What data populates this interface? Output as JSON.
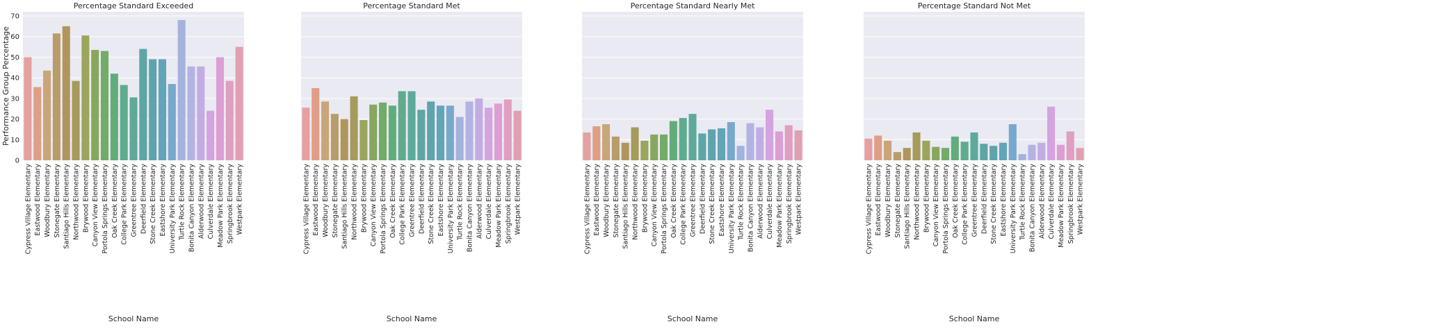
{
  "figure": {
    "ylabel": "Performance Group Percentage",
    "xlabel": "School Name",
    "background": "#eaeaf2",
    "grid_color": "#ffffff",
    "text_color": "#262626"
  },
  "chart_data": {
    "type": "bar",
    "sharey": true,
    "ylim": [
      0,
      72
    ],
    "yticks": [
      0,
      10,
      20,
      30,
      40,
      50,
      60,
      70
    ],
    "grid": true,
    "categories": [
      "Cypress Village Elementary",
      "Eastwood Elementary",
      "Woodbury Elementary",
      "Stonegate Elementary",
      "Santiago Hills Elementary",
      "Northwood Elementary",
      "Brywood Elementary",
      "Canyon View Elementary",
      "Portola Springs Elementary",
      "Oak Creek Elementary",
      "College Park Elementary",
      "Greentree Elementary",
      "Deerfield Elementary",
      "Stone Creek Elementary",
      "Eastshore Elementary",
      "University Park Elementary",
      "Turtle Rock Elementary",
      "Bonita Canyon Elementary",
      "Alderwood Elementary",
      "Culverdale Elementary",
      "Meadow Park Elementary",
      "Springbrook Elementary",
      "Westpark Elementary"
    ],
    "colors": [
      "#e5a0a0",
      "#de9f86",
      "#c9a57a",
      "#b89d6a",
      "#b0965e",
      "#a69a5c",
      "#9ba65c",
      "#87a75e",
      "#72ac68",
      "#62ac7c",
      "#5fab8e",
      "#5eaa9a",
      "#5da6a4",
      "#5fa4ad",
      "#63a4b8",
      "#78a8cc",
      "#a4b2de",
      "#b3b3e3",
      "#c2ade3",
      "#d4a3e0",
      "#dc9fd3",
      "#e09ec1",
      "#e0a0b2"
    ],
    "panels": [
      {
        "title": "Percentage Standard Exceeded",
        "values": [
          50,
          35.5,
          43.5,
          61.5,
          65,
          38.5,
          60.5,
          53.5,
          53,
          42,
          36.5,
          30.5,
          54,
          49,
          49,
          37,
          68,
          45.5,
          45.5,
          24,
          50,
          38.5,
          55
        ]
      },
      {
        "title": "Percentage Standard Met",
        "values": [
          25.5,
          35,
          28.5,
          22.5,
          20,
          31,
          19.5,
          27,
          28,
          26.5,
          33.5,
          33.5,
          24.5,
          28.5,
          26.5,
          26.5,
          21,
          28.5,
          30,
          25.5,
          27.5,
          29.5,
          24
        ]
      },
      {
        "title": "Percentage Standard Nearly Met",
        "values": [
          13.5,
          16.5,
          17.5,
          11.5,
          8.5,
          16,
          9.5,
          12.5,
          12.5,
          19,
          20.5,
          22.5,
          13,
          15,
          15.5,
          18.5,
          7,
          18,
          16,
          24.5,
          14,
          17,
          14.5
        ]
      },
      {
        "title": "Percentage Standard Not Met",
        "values": [
          10.5,
          12,
          9.5,
          4,
          6,
          13.5,
          9.5,
          6.5,
          6,
          11.5,
          9,
          13.5,
          8,
          7,
          8.5,
          17.5,
          3,
          7.5,
          8.5,
          26,
          7.5,
          14,
          6
        ]
      }
    ]
  }
}
